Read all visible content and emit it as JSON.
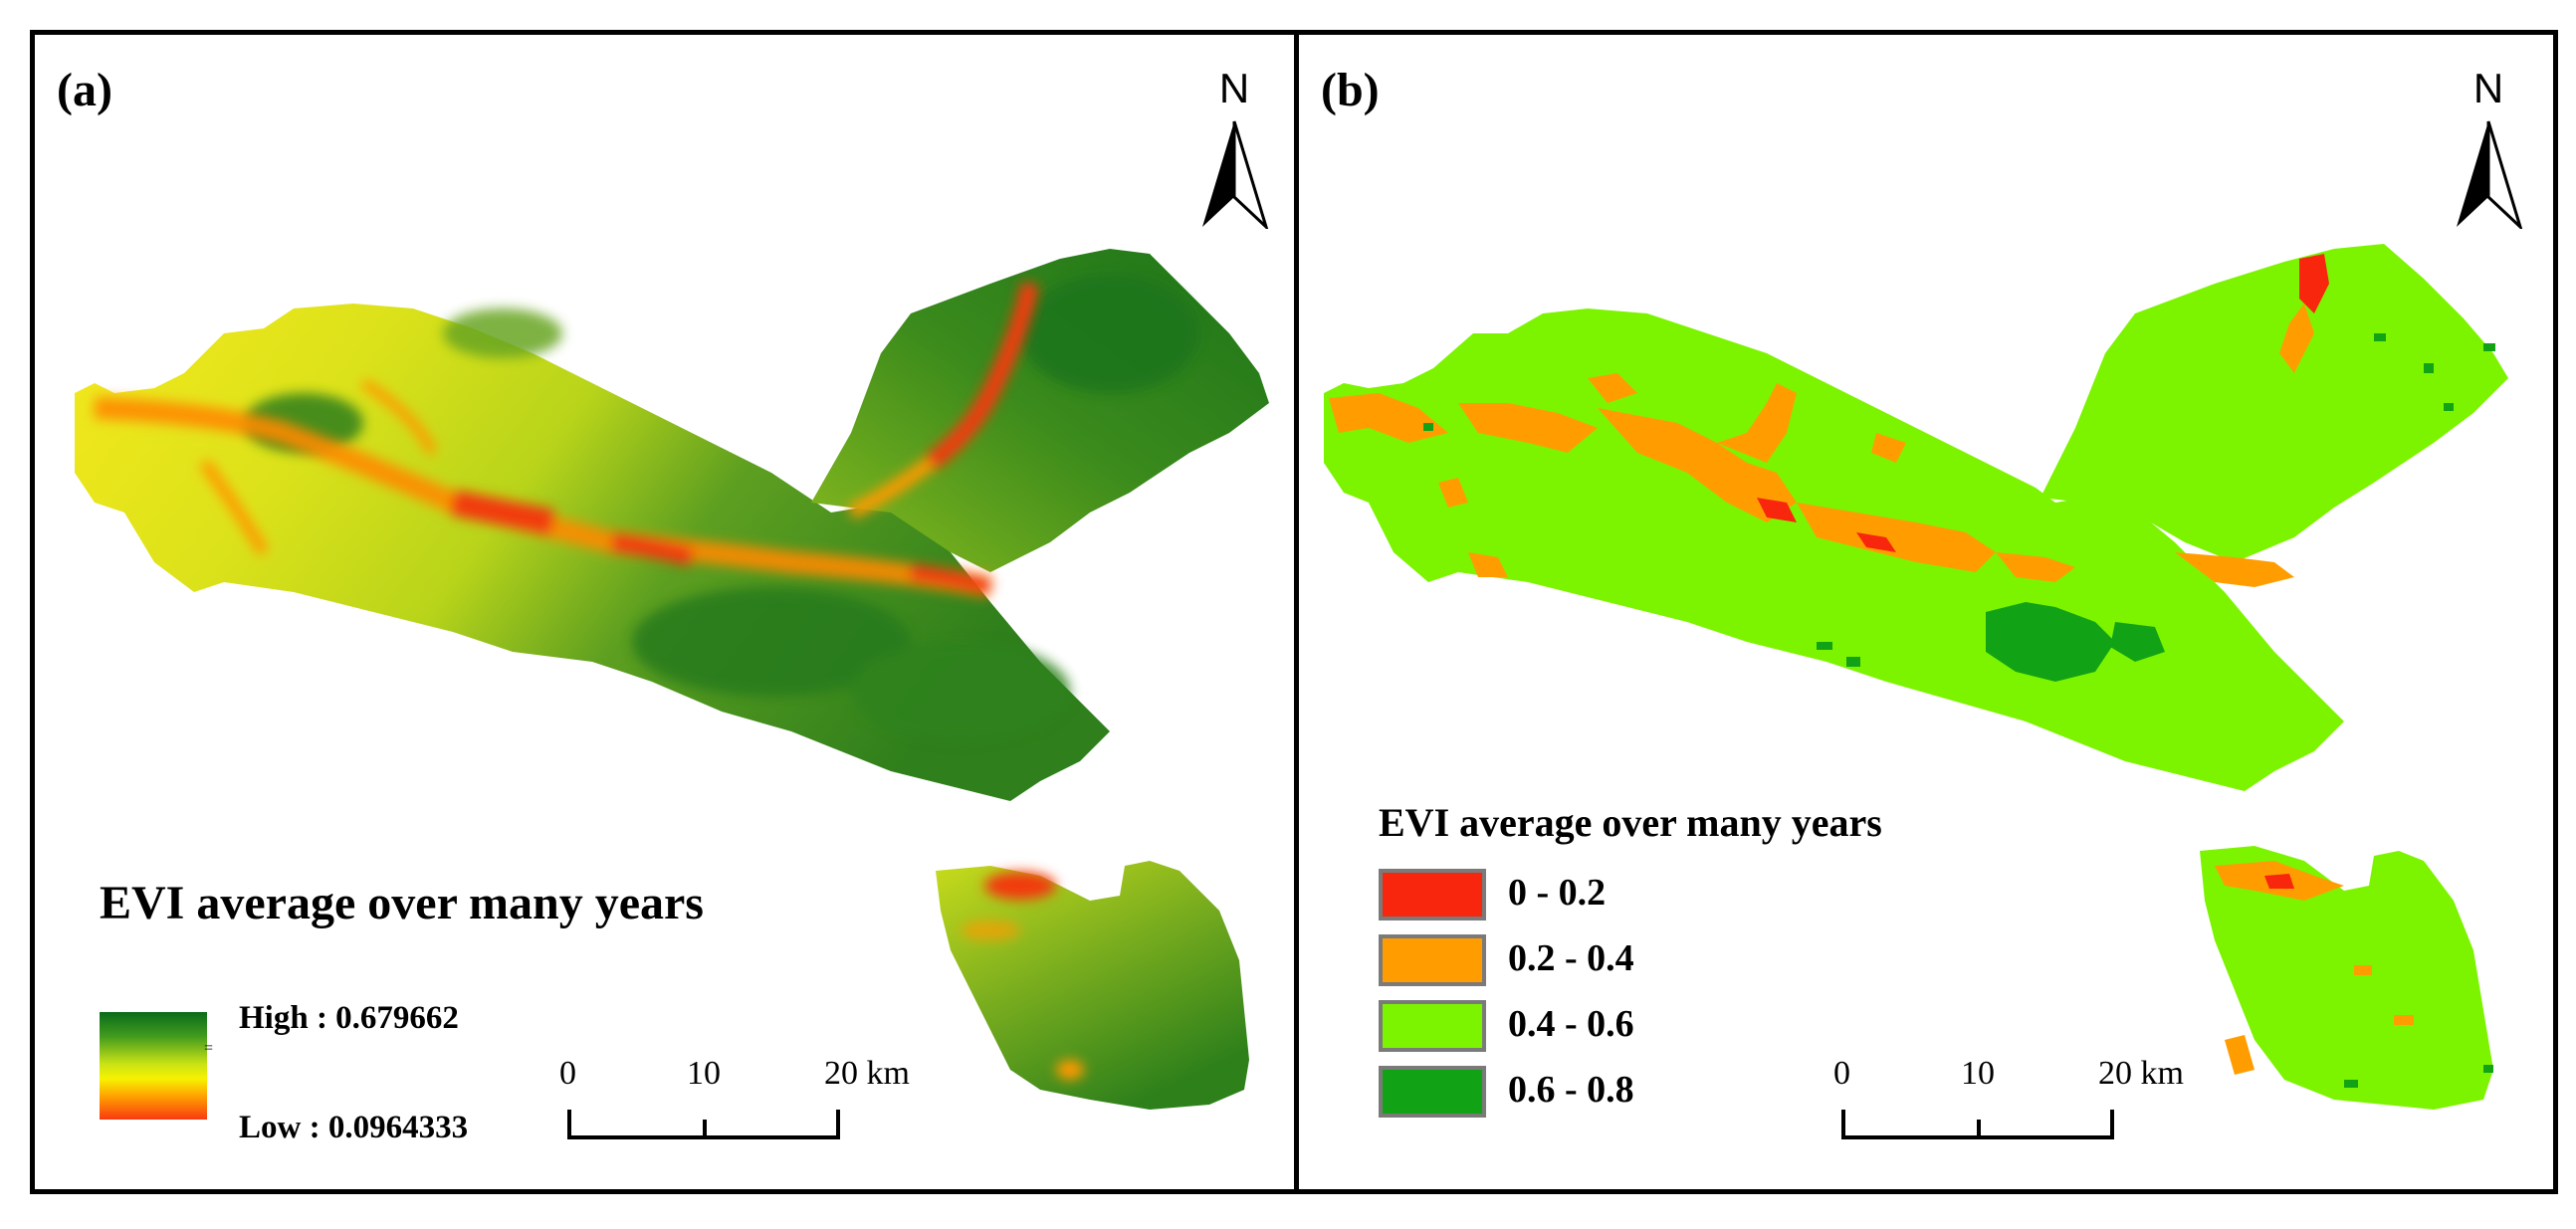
{
  "panel_a": {
    "label": "(a)",
    "north_label": "N",
    "legend_title": "EVI average over many years",
    "high_label": "High : 0.679662",
    "low_label": "Low : 0.0964333",
    "ramp_marker": "=",
    "scale_ticks": [
      "0",
      "10",
      "20 km"
    ]
  },
  "panel_b": {
    "label": "(b)",
    "north_label": "N",
    "legend_title": "EVI average over many years",
    "classes": [
      {
        "label": "0 - 0.2",
        "color": "#f8260d"
      },
      {
        "label": "0.2 - 0.4",
        "color": "#ff9d00"
      },
      {
        "label": "0.4 - 0.6",
        "color": "#7cf400"
      },
      {
        "label": "0.6 - 0.8",
        "color": "#11a315"
      }
    ],
    "scale_ticks": [
      "0",
      "10",
      "20 km"
    ]
  },
  "colors": {
    "evi_high": "#0a6b1a",
    "evi_mid": "#f7f200",
    "evi_low": "#f83a12"
  }
}
